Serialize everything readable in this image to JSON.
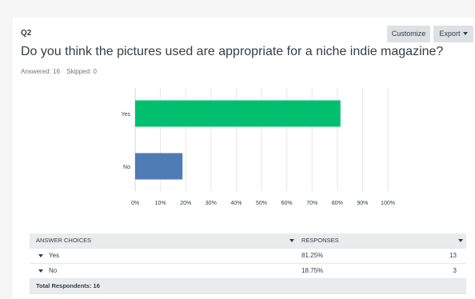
{
  "question": {
    "number": "Q2",
    "title": "Do you think the pictures used are appropriate for a niche indie magazine?",
    "answered_label": "Answered: 16",
    "skipped_label": "Skipped: 0"
  },
  "toolbar": {
    "customize_label": "Customize",
    "export_label": "Export"
  },
  "colors": {
    "yes_bar": "#00bf6f",
    "no_bar": "#507cb6",
    "grid": "#e5e7e9"
  },
  "chart_data": {
    "type": "bar",
    "orientation": "horizontal",
    "categories": [
      "Yes",
      "No"
    ],
    "values": [
      81.25,
      18.75
    ],
    "xlim": [
      0,
      100
    ],
    "x_ticks": [
      "0%",
      "10%",
      "20%",
      "30%",
      "40%",
      "50%",
      "60%",
      "70%",
      "80%",
      "90%",
      "100%"
    ],
    "grid": true
  },
  "table": {
    "headers": {
      "choices": "ANSWER CHOICES",
      "responses": "RESPONSES"
    },
    "rows": [
      {
        "choice": "Yes",
        "percent": "81.25%",
        "count": "13"
      },
      {
        "choice": "No",
        "percent": "18.75%",
        "count": "3"
      }
    ],
    "total_label": "Total Respondents: 16"
  }
}
